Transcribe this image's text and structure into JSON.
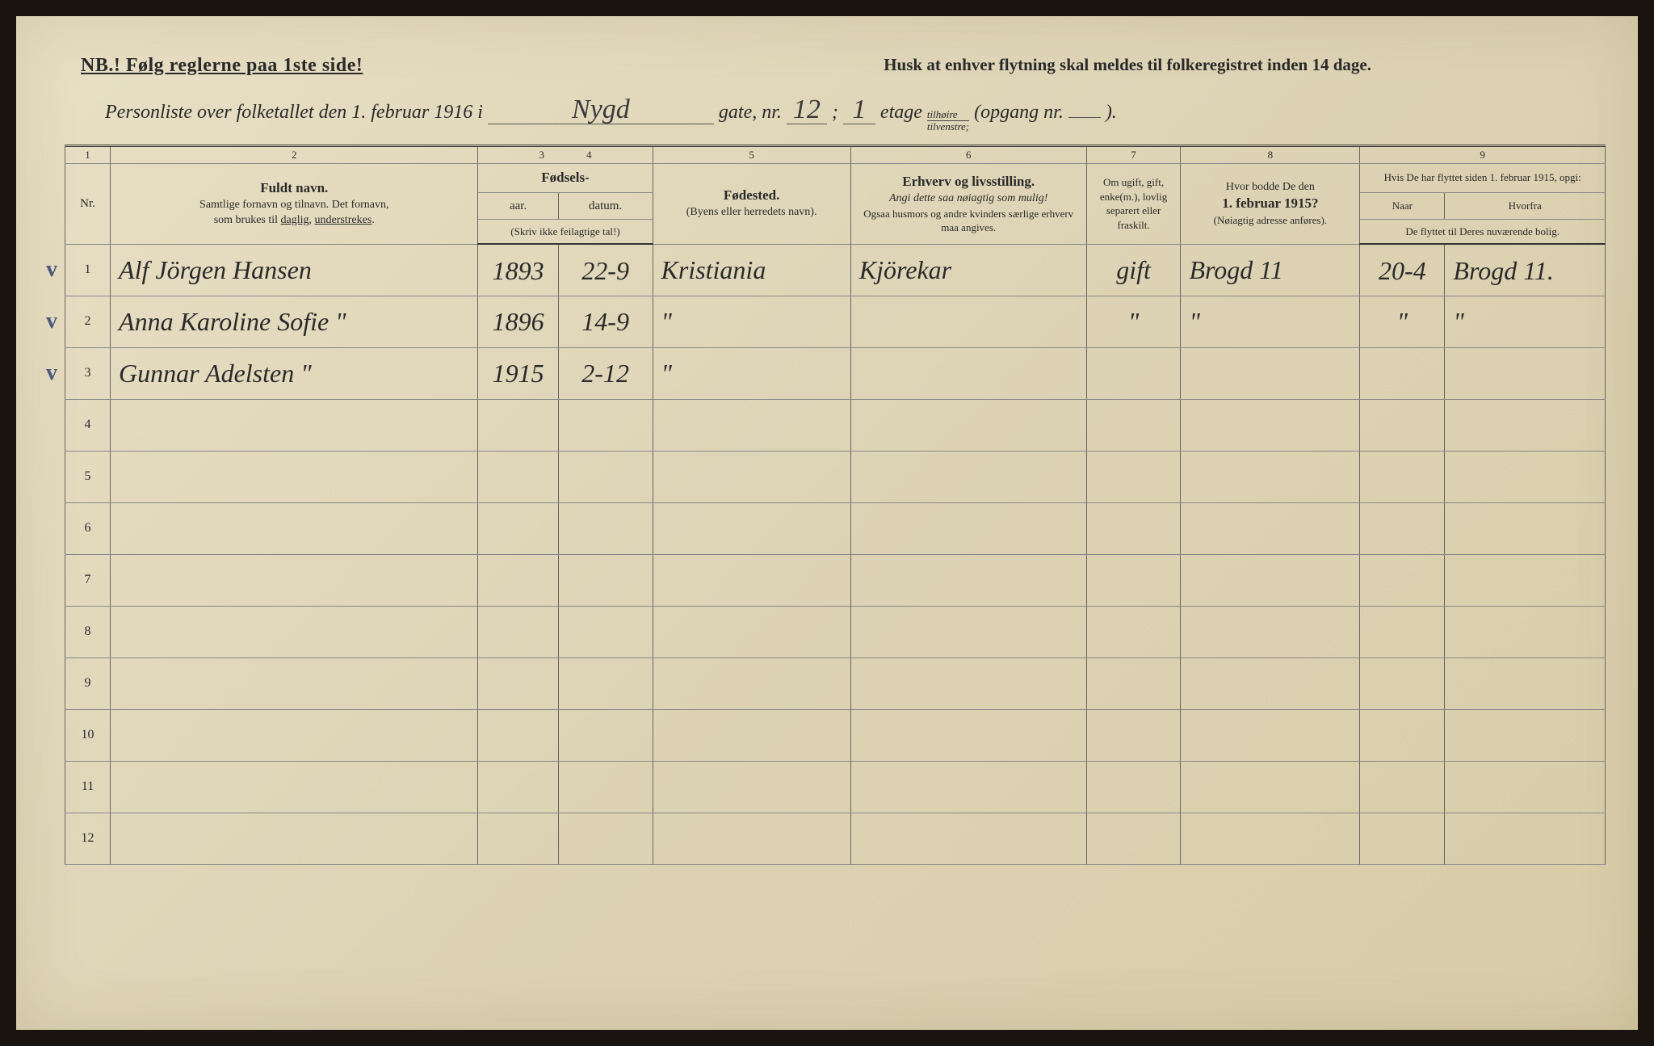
{
  "header": {
    "nb": "NB.! Følg reglerne paa 1ste side!",
    "husk": "Husk at enhver flytning skal meldes til folkeregistret inden 14 dage.",
    "line_prefix": "Personliste over folketallet den 1. februar 1916 i",
    "street_hw": "Nygd",
    "gate_label": "gate, nr.",
    "gate_nr_hw": "12",
    "semicolon": ";",
    "etage_hw": "1",
    "etage_label": "etage",
    "frac_top": "tilhøire",
    "frac_bot": "tilvenstre;",
    "opgang_label": "(opgang nr.",
    "opgang_hw": "",
    "close_paren": ")."
  },
  "colnums": [
    "1",
    "2",
    "3",
    "4",
    "5",
    "6",
    "7",
    "8",
    "9"
  ],
  "columns": {
    "nr": "Nr.",
    "name_main": "Fuldt navn.",
    "name_sub1": "Samtlige fornavn og tilnavn.  Det fornavn,",
    "name_sub2": "som brukes til daglig, understrekes.",
    "birth_main": "Fødsels-",
    "birth_year": "aar.",
    "birth_date": "datum.",
    "birth_note": "(Skriv ikke feilagtige tal!)",
    "bplace_main": "Fødested.",
    "bplace_sub": "(Byens eller herredets navn).",
    "occ_main": "Erhverv og livsstilling.",
    "occ_sub1": "Angi dette saa nøiagtig som mulig!",
    "occ_sub2": "Ogsaa husmors og andre kvinders særlige erhverv maa angives.",
    "mar_main": "Om ugift, gift, enke(m.), lovlig separert eller fraskilt.",
    "prev_main": "Hvor bodde De den",
    "prev_bold": "1. februar 1915?",
    "prev_sub": "(Nøiagtig adresse anføres).",
    "moved_main": "Hvis De har flyttet siden 1. februar 1915, opgi:",
    "moved_when": "Naar",
    "moved_from": "Hvorfra",
    "moved_sub": "De flyttet til Deres nuværende bolig."
  },
  "rows": [
    {
      "nr": "1",
      "check": "v",
      "name": "Alf Jörgen Hansen",
      "year": "1893",
      "date": "22-9",
      "bplace": "Kristiania",
      "occ": "Kjörekar",
      "mar": "gift",
      "prev": "Brogd 11",
      "when": "20-4",
      "from": "Brogd 11."
    },
    {
      "nr": "2",
      "check": "v",
      "name": "Anna Karoline Sofie   \"",
      "year": "1896",
      "date": "14-9",
      "bplace": "\"",
      "occ": "",
      "mar": "\"",
      "prev": "\"",
      "when": "\"",
      "from": "\""
    },
    {
      "nr": "3",
      "check": "v",
      "name": "Gunnar Adelsten   \"",
      "year": "1915",
      "date": "2-12",
      "bplace": "\"",
      "occ": "",
      "mar": "",
      "prev": "",
      "when": "",
      "from": ""
    },
    {
      "nr": "4"
    },
    {
      "nr": "5"
    },
    {
      "nr": "6"
    },
    {
      "nr": "7"
    },
    {
      "nr": "8"
    },
    {
      "nr": "9"
    },
    {
      "nr": "10"
    },
    {
      "nr": "11"
    },
    {
      "nr": "12"
    }
  ],
  "colors": {
    "paper": "#e4dac0",
    "ink": "#2a2a2a",
    "handwriting": "#2b2b2b",
    "checkmark": "#4a5a7a"
  }
}
